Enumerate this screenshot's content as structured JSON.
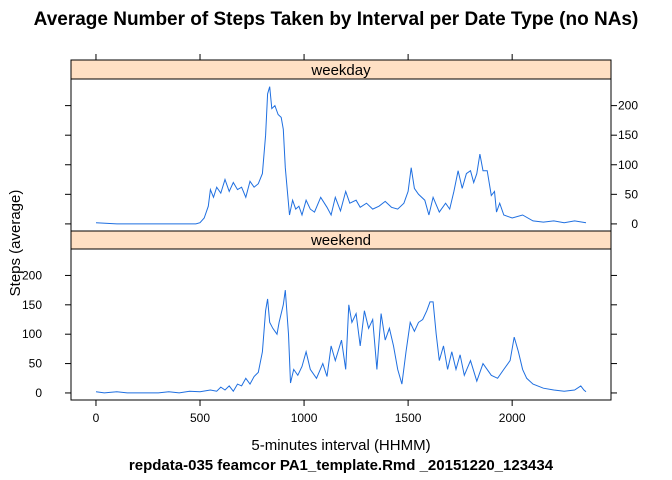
{
  "chart_data": {
    "type": "line",
    "title": "Average Number of Steps Taken by Interval per Date Type (no NAs)",
    "xlabel": "5-minutes interval (HHMM)",
    "ylabel": "Steps (average)",
    "caption": "repdata-035 feamcor PA1_template.Rmd _20151220_123434",
    "xlim": [
      -120,
      2475
    ],
    "ylim": [
      -12,
      245
    ],
    "x_ticks": [
      0,
      500,
      1000,
      1500,
      2000
    ],
    "y_ticks": [
      0,
      50,
      100,
      150,
      200
    ],
    "line_color": "#1f6fe0",
    "strip_color": "#ffe0c4",
    "panels": [
      {
        "name": "weekday",
        "y_tick_side": "right",
        "points": [
          [
            0,
            2
          ],
          [
            100,
            0
          ],
          [
            200,
            0
          ],
          [
            300,
            0
          ],
          [
            400,
            0
          ],
          [
            480,
            0
          ],
          [
            500,
            2
          ],
          [
            520,
            10
          ],
          [
            540,
            30
          ],
          [
            550,
            58
          ],
          [
            565,
            45
          ],
          [
            580,
            62
          ],
          [
            600,
            52
          ],
          [
            620,
            75
          ],
          [
            640,
            55
          ],
          [
            660,
            70
          ],
          [
            680,
            58
          ],
          [
            700,
            62
          ],
          [
            720,
            45
          ],
          [
            740,
            72
          ],
          [
            760,
            62
          ],
          [
            780,
            68
          ],
          [
            800,
            85
          ],
          [
            815,
            150
          ],
          [
            825,
            220
          ],
          [
            835,
            232
          ],
          [
            845,
            195
          ],
          [
            860,
            200
          ],
          [
            875,
            185
          ],
          [
            890,
            180
          ],
          [
            900,
            160
          ],
          [
            910,
            95
          ],
          [
            920,
            55
          ],
          [
            930,
            15
          ],
          [
            945,
            40
          ],
          [
            960,
            25
          ],
          [
            975,
            30
          ],
          [
            990,
            15
          ],
          [
            1010,
            40
          ],
          [
            1030,
            25
          ],
          [
            1050,
            20
          ],
          [
            1080,
            45
          ],
          [
            1110,
            28
          ],
          [
            1130,
            15
          ],
          [
            1150,
            45
          ],
          [
            1175,
            22
          ],
          [
            1200,
            55
          ],
          [
            1220,
            35
          ],
          [
            1250,
            40
          ],
          [
            1270,
            28
          ],
          [
            1300,
            35
          ],
          [
            1330,
            25
          ],
          [
            1360,
            30
          ],
          [
            1390,
            38
          ],
          [
            1420,
            28
          ],
          [
            1450,
            25
          ],
          [
            1480,
            35
          ],
          [
            1500,
            55
          ],
          [
            1515,
            95
          ],
          [
            1530,
            60
          ],
          [
            1550,
            50
          ],
          [
            1580,
            40
          ],
          [
            1600,
            15
          ],
          [
            1620,
            45
          ],
          [
            1650,
            20
          ],
          [
            1680,
            35
          ],
          [
            1700,
            25
          ],
          [
            1720,
            55
          ],
          [
            1740,
            90
          ],
          [
            1760,
            60
          ],
          [
            1780,
            85
          ],
          [
            1800,
            90
          ],
          [
            1815,
            70
          ],
          [
            1830,
            85
          ],
          [
            1845,
            118
          ],
          [
            1860,
            90
          ],
          [
            1880,
            90
          ],
          [
            1900,
            48
          ],
          [
            1915,
            55
          ],
          [
            1925,
            20
          ],
          [
            1940,
            35
          ],
          [
            1960,
            15
          ],
          [
            2000,
            10
          ],
          [
            2050,
            15
          ],
          [
            2100,
            5
          ],
          [
            2150,
            3
          ],
          [
            2200,
            5
          ],
          [
            2250,
            2
          ],
          [
            2300,
            5
          ],
          [
            2355,
            2
          ]
        ]
      },
      {
        "name": "weekend",
        "y_tick_side": "left",
        "points": [
          [
            0,
            2
          ],
          [
            40,
            0
          ],
          [
            100,
            2
          ],
          [
            150,
            0
          ],
          [
            200,
            0
          ],
          [
            300,
            0
          ],
          [
            350,
            2
          ],
          [
            400,
            0
          ],
          [
            450,
            3
          ],
          [
            500,
            2
          ],
          [
            550,
            5
          ],
          [
            580,
            3
          ],
          [
            600,
            10
          ],
          [
            620,
            5
          ],
          [
            640,
            12
          ],
          [
            660,
            3
          ],
          [
            680,
            15
          ],
          [
            700,
            12
          ],
          [
            720,
            25
          ],
          [
            740,
            15
          ],
          [
            760,
            28
          ],
          [
            780,
            35
          ],
          [
            800,
            70
          ],
          [
            815,
            140
          ],
          [
            825,
            160
          ],
          [
            835,
            120
          ],
          [
            850,
            110
          ],
          [
            870,
            100
          ],
          [
            880,
            120
          ],
          [
            900,
            150
          ],
          [
            910,
            175
          ],
          [
            925,
            100
          ],
          [
            935,
            17
          ],
          [
            950,
            40
          ],
          [
            970,
            30
          ],
          [
            990,
            45
          ],
          [
            1010,
            70
          ],
          [
            1030,
            40
          ],
          [
            1060,
            25
          ],
          [
            1090,
            50
          ],
          [
            1110,
            28
          ],
          [
            1130,
            80
          ],
          [
            1150,
            55
          ],
          [
            1180,
            90
          ],
          [
            1200,
            40
          ],
          [
            1215,
            150
          ],
          [
            1230,
            120
          ],
          [
            1250,
            135
          ],
          [
            1270,
            80
          ],
          [
            1290,
            140
          ],
          [
            1310,
            110
          ],
          [
            1330,
            125
          ],
          [
            1350,
            40
          ],
          [
            1370,
            135
          ],
          [
            1390,
            90
          ],
          [
            1410,
            110
          ],
          [
            1430,
            80
          ],
          [
            1450,
            40
          ],
          [
            1470,
            15
          ],
          [
            1490,
            70
          ],
          [
            1510,
            120
          ],
          [
            1530,
            105
          ],
          [
            1550,
            120
          ],
          [
            1570,
            125
          ],
          [
            1590,
            140
          ],
          [
            1605,
            155
          ],
          [
            1620,
            155
          ],
          [
            1635,
            100
          ],
          [
            1650,
            55
          ],
          [
            1670,
            80
          ],
          [
            1690,
            40
          ],
          [
            1710,
            70
          ],
          [
            1730,
            40
          ],
          [
            1750,
            65
          ],
          [
            1770,
            30
          ],
          [
            1800,
            55
          ],
          [
            1830,
            20
          ],
          [
            1860,
            50
          ],
          [
            1900,
            30
          ],
          [
            1930,
            25
          ],
          [
            1960,
            40
          ],
          [
            1990,
            55
          ],
          [
            2010,
            95
          ],
          [
            2030,
            70
          ],
          [
            2050,
            40
          ],
          [
            2070,
            25
          ],
          [
            2100,
            15
          ],
          [
            2150,
            8
          ],
          [
            2200,
            5
          ],
          [
            2250,
            3
          ],
          [
            2300,
            5
          ],
          [
            2330,
            12
          ],
          [
            2345,
            5
          ],
          [
            2355,
            2
          ]
        ]
      }
    ]
  }
}
